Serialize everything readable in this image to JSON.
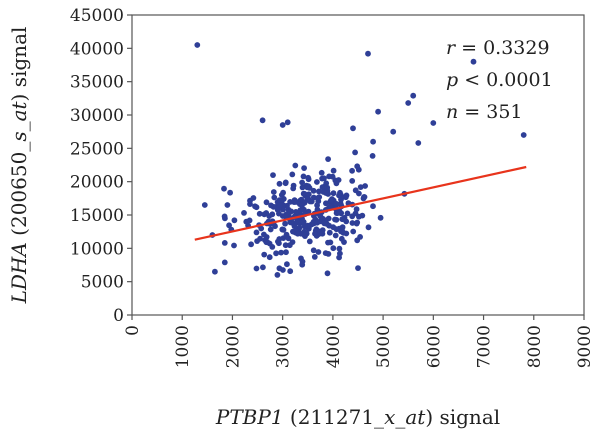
{
  "chart_data": {
    "type": "scatter",
    "xlabel": {
      "gene": "PTBP1",
      "probe": " (211271_",
      "probe_italic": "x_at",
      "suffix": ") signal"
    },
    "ylabel": {
      "gene": "LDHA",
      "probe": " (200650_",
      "probe_italic": "s_at",
      "suffix": ") signal"
    },
    "xlim": [
      0,
      9000
    ],
    "ylim": [
      0,
      45000
    ],
    "x_ticks": [
      0,
      1000,
      2000,
      3000,
      4000,
      5000,
      6000,
      7000,
      8000,
      9000
    ],
    "y_ticks": [
      0,
      5000,
      10000,
      15000,
      20000,
      25000,
      30000,
      35000,
      40000,
      45000
    ],
    "x_tick_labels": [
      "0",
      "1000",
      "2000",
      "3000",
      "4000",
      "5000",
      "6000",
      "7000",
      "8000",
      "9000"
    ],
    "y_tick_labels": [
      "0",
      "5000",
      "10000",
      "15000",
      "20000",
      "25000",
      "30000",
      "35000",
      "40000",
      "45000"
    ],
    "point_color": "#2f3f97",
    "fit_color": "#e8341c",
    "fit_line": {
      "x": [
        1250,
        7850
      ],
      "y": [
        11300,
        22200
      ]
    },
    "stats": [
      {
        "key": "r",
        "value": " = 0.3329"
      },
      {
        "key": "p",
        "value": " < 0.0001"
      },
      {
        "key": "n",
        "value": " = 351"
      }
    ],
    "n_points": 351,
    "points": [
      [
        1300,
        40500
      ],
      [
        4700,
        39200
      ],
      [
        6800,
        38000
      ],
      [
        5600,
        32900
      ],
      [
        5500,
        31800
      ],
      [
        4900,
        30500
      ],
      [
        3100,
        28900
      ],
      [
        3000,
        28500
      ],
      [
        2600,
        29200
      ],
      [
        6000,
        28800
      ],
      [
        4400,
        28000
      ],
      [
        7800,
        27000
      ],
      [
        5200,
        27500
      ],
      [
        4800,
        26000
      ],
      [
        5700,
        25800
      ],
      [
        1450,
        16500
      ],
      [
        1650,
        6500
      ],
      [
        1600,
        12000
      ],
      [
        1900,
        16500
      ],
      [
        1850,
        14500
      ]
    ]
  }
}
